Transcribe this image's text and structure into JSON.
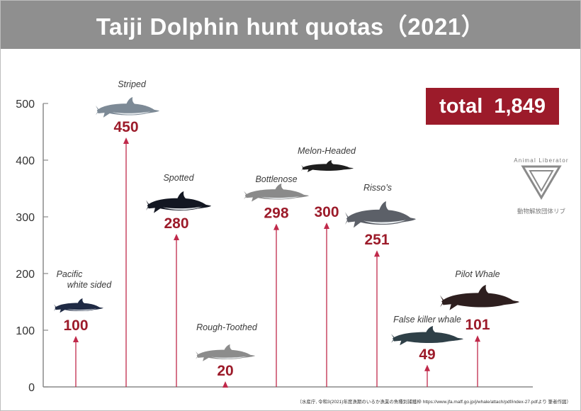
{
  "title": "Taiji  Dolphin hunt quotas（2021）",
  "total_label": "total  1,849",
  "source_note": "（水産庁, 令和3(2021)年度漁期のいるか漁業の魚種別捕獲枠 https://www.jfa.maff.go.jp/j/whale/attach/pdf/index-27.pdfより 筆者作図）",
  "logo": {
    "name": "Animal Liberator",
    "jp": "動物解放団体リブ"
  },
  "colors": {
    "accent": "#9c1b2a",
    "header": "#8f8f8f",
    "line": "#c0294a",
    "axis": "#8a8a8a"
  },
  "chart_data": {
    "type": "bar",
    "ylim": [
      0,
      500
    ],
    "yticks": [
      "0",
      "100",
      "200",
      "300",
      "400",
      "500"
    ],
    "grid": false,
    "categories": [
      "Pacific white sided",
      "Striped",
      "Spotted",
      "Rough-Toothed",
      "Bottlenose",
      "Melon-Headed",
      "Risso’s",
      "False killer whale",
      "Pilot Whale"
    ],
    "values": [
      100,
      450,
      280,
      20,
      298,
      300,
      251,
      49,
      101
    ],
    "value_labels": [
      "100",
      "450",
      "280",
      "20",
      "298",
      "300",
      "251",
      "49",
      "101"
    ],
    "category_labels": [
      [
        "Pacific",
        "white sided"
      ],
      [
        "Striped"
      ],
      [
        "Spotted"
      ],
      [
        "Rough-Toothed"
      ],
      [
        "Bottlenose"
      ],
      [
        "Melon-Headed"
      ],
      [
        "Risso’s"
      ],
      [
        "False killer whale"
      ],
      [
        "Pilot Whale"
      ]
    ],
    "icons": [
      "pacific-white-sided-dolphin-icon",
      "striped-dolphin-icon",
      "spotted-dolphin-icon",
      "rough-toothed-dolphin-icon",
      "bottlenose-dolphin-icon",
      "melon-headed-whale-icon",
      "rissos-dolphin-icon",
      "false-killer-whale-icon",
      "pilot-whale-icon"
    ]
  }
}
